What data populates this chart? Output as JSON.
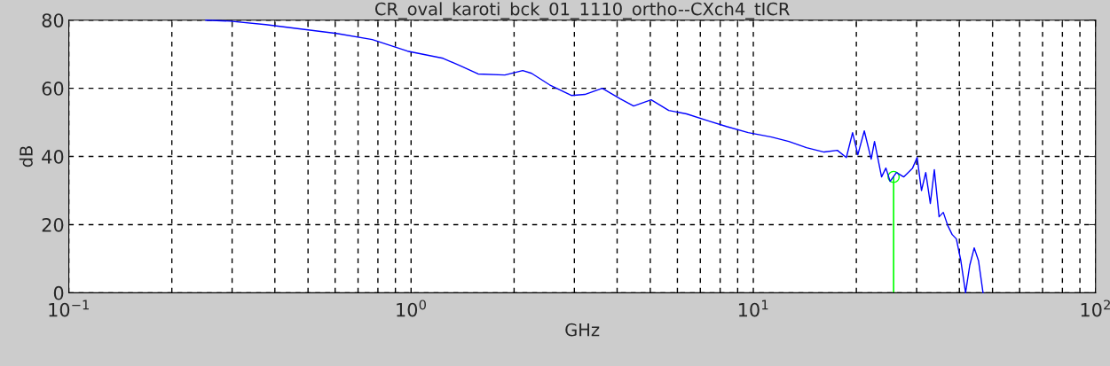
{
  "chart_data": {
    "type": "line",
    "title": "CR_oval_karoti_bck_01_1110_ortho--CXch4_tICR",
    "xlabel": "GHz",
    "ylabel": "dB",
    "log": "x",
    "grid": true,
    "xlim": [
      0.1,
      100
    ],
    "ylim": [
      0,
      80
    ],
    "xticks": [
      {
        "value": 0.1,
        "label": "10$^{−1}$"
      },
      {
        "value": 0.2,
        "label": null
      },
      {
        "value": 0.3,
        "label": null
      },
      {
        "value": 0.4,
        "label": null
      },
      {
        "value": 0.5,
        "label": null
      },
      {
        "value": 0.6,
        "label": null
      },
      {
        "value": 0.7,
        "label": null
      },
      {
        "value": 0.8,
        "label": null
      },
      {
        "value": 0.9,
        "label": null
      },
      {
        "value": 1,
        "label": "10$^{0}$"
      },
      {
        "value": 2,
        "label": null
      },
      {
        "value": 3,
        "label": null
      },
      {
        "value": 4,
        "label": null
      },
      {
        "value": 5,
        "label": null
      },
      {
        "value": 6,
        "label": null
      },
      {
        "value": 7,
        "label": null
      },
      {
        "value": 8,
        "label": null
      },
      {
        "value": 9,
        "label": null
      },
      {
        "value": 10,
        "label": "10$^{1}$"
      },
      {
        "value": 20,
        "label": null
      },
      {
        "value": 30,
        "label": null
      },
      {
        "value": 40,
        "label": null
      },
      {
        "value": 50,
        "label": null
      },
      {
        "value": 60,
        "label": null
      },
      {
        "value": 70,
        "label": null
      },
      {
        "value": 80,
        "label": null
      },
      {
        "value": 90,
        "label": null
      },
      {
        "value": 100,
        "label": "10$^{2}$"
      }
    ],
    "yticks": [
      0,
      20,
      40,
      60,
      80
    ],
    "series": [
      {
        "color": "#0000ff",
        "x": [
          0.251,
          0.296,
          0.376,
          0.477,
          0.606,
          0.77,
          0.976,
          1.24,
          1.4,
          1.57,
          1.88,
          2.12,
          2.25,
          2.54,
          2.94,
          3.22,
          3.62,
          4.09,
          4.47,
          5.03,
          5.66,
          6.38,
          7.42,
          8.35,
          9.66,
          11.3,
          12.7,
          14.3,
          16.1,
          17.6,
          18.7,
          19.5,
          20.2,
          21.1,
          22.1,
          22.6,
          23.7,
          24.4,
          25.1,
          26.2,
          27.5,
          29.2,
          30.1,
          31,
          31.9,
          32.9,
          33.8,
          34.9,
          35.9,
          37,
          38.1,
          39.2,
          40.4,
          41.7,
          42.9,
          44.2,
          45.5,
          46.9
        ],
        "values": [
          80,
          79.7,
          78.7,
          77.4,
          76.1,
          74.3,
          70.9,
          68.8,
          66.5,
          64.2,
          63.9,
          65.2,
          64.4,
          61,
          57.9,
          58.2,
          60,
          56.9,
          54.8,
          56.6,
          53.5,
          52.5,
          50.4,
          48.8,
          47,
          45.7,
          44.4,
          42.6,
          41.3,
          41.8,
          39.7,
          47,
          40.5,
          47.5,
          39.2,
          44.4,
          34,
          36.6,
          32.7,
          35.3,
          34,
          36.6,
          39.7,
          30,
          35.3,
          26.2,
          36.1,
          22.3,
          23.6,
          19.7,
          17.1,
          15.8,
          9.4,
          0,
          8.1,
          13.2,
          9.4,
          0
        ]
      },
      {
        "type": "lollipop",
        "color": "#00ff00",
        "marker": "circle",
        "x": [
          25.7
        ],
        "values": [
          34
        ]
      }
    ]
  }
}
